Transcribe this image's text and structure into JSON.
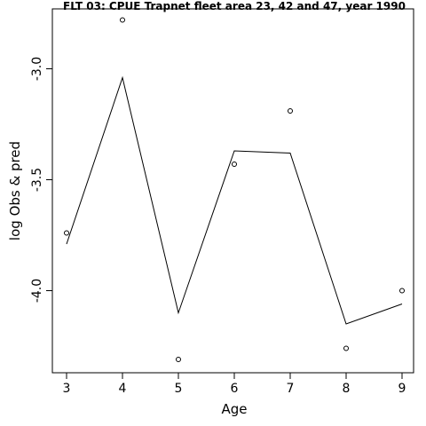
{
  "chart_data": {
    "type": "line",
    "title": "FLT 03: CPUE Trapnet fleet area 23, 42 and 47, year 1990",
    "xlabel": "Age",
    "ylabel": "log Obs & pred",
    "xlim": [
      3,
      9
    ],
    "ylim": [
      -4.37,
      -2.73
    ],
    "x_ticks": [
      3,
      4,
      5,
      6,
      7,
      8,
      9
    ],
    "y_ticks": [
      -3.0,
      -3.5,
      -4.0
    ],
    "y_tick_labels": [
      "-3.0",
      "-3.5",
      "-4.0"
    ],
    "grid": false,
    "series": [
      {
        "style": "line",
        "x": [
          3,
          4,
          5,
          6,
          7,
          8,
          9
        ],
        "y": [
          -3.79,
          -3.04,
          -4.1,
          -3.37,
          -3.38,
          -4.15,
          -4.06
        ]
      },
      {
        "style": "points",
        "x": [
          3,
          4,
          5,
          6,
          7,
          8,
          9
        ],
        "y": [
          -3.74,
          -2.78,
          -4.31,
          -3.43,
          -3.19,
          -4.26,
          -4.0
        ]
      }
    ]
  }
}
